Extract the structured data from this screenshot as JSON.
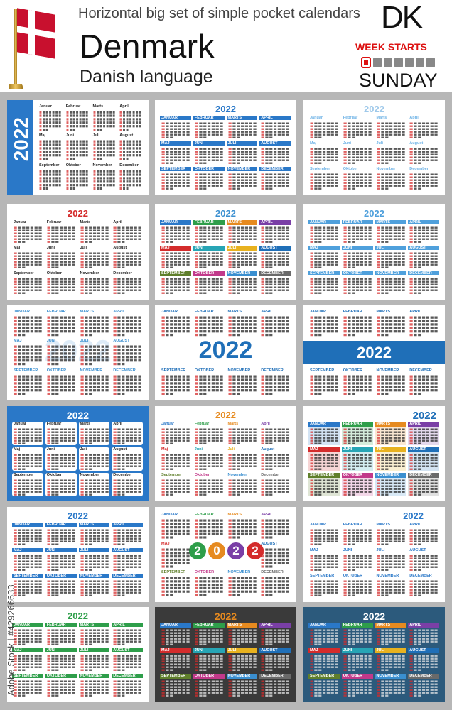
{
  "header": {
    "headline": "Horizontal big set of simple pocket calendars",
    "country": "Denmark",
    "language": "Danish language",
    "country_code": "DK",
    "week_starts_label": "WEEK STARTS",
    "week_starts_day": "SUNDAY",
    "flag_colors": {
      "red": "#c8102e",
      "cross": "#ffffff"
    }
  },
  "year": "2022",
  "months_caps": [
    "JANUAR",
    "FEBRUAR",
    "MARTS",
    "APRIL",
    "MAJ",
    "JUNI",
    "JULI",
    "AUGUST",
    "SEPTEMBER",
    "OKTOBER",
    "NOVEMBER",
    "DECEMBER"
  ],
  "months_title": [
    "Januar",
    "Februar",
    "Marts",
    "April",
    "Maj",
    "Juni",
    "Juli",
    "August",
    "September",
    "Oktober",
    "November",
    "December"
  ],
  "watermark": "Adobe Stock | #429266633",
  "card_styles": [
    {
      "id": "c1",
      "accent": "#2a78c8",
      "title_color": "#ffffff",
      "month_case": "title",
      "year_vertical": true
    },
    {
      "id": "c2",
      "accent": "#2a78c8",
      "title_color": "#2a78c8",
      "month_case": "caps"
    },
    {
      "id": "c3",
      "accent": "#6fb3e6",
      "title_color": "#9fc9ea",
      "month_case": "title"
    },
    {
      "id": "c4",
      "accent": "#d42c2c",
      "title_color": "#d42c2c",
      "month_case": "title"
    },
    {
      "id": "c5",
      "accent": "#3a8fd0",
      "title_color": "#3a8fd0",
      "month_case": "caps",
      "colorful": true
    },
    {
      "id": "c6",
      "accent": "#4fa0dc",
      "title_color": "#4fa0dc",
      "month_case": "caps"
    },
    {
      "id": "c7",
      "accent": "#3a8fd0",
      "title_color": "#cfe3f4",
      "month_case": "caps"
    },
    {
      "id": "c8",
      "accent": "#1f6fb8",
      "title_color": "#1f6fb8",
      "month_case": "caps"
    },
    {
      "id": "c9",
      "accent": "#1f6fb8",
      "title_color": "#1f6fb8",
      "month_case": "caps"
    },
    {
      "id": "c10",
      "accent": "#2a78c8",
      "title_color": "#ffffff",
      "month_case": "title"
    },
    {
      "id": "c11",
      "accent": "#e68a1f",
      "title_color": "#e68a1f",
      "month_case": "title",
      "colorful": true
    },
    {
      "id": "c12",
      "accent": "#3a8fd0",
      "title_color": "#1f6fb8",
      "month_case": "caps",
      "colorful": true
    },
    {
      "id": "c13",
      "accent": "#2a78c8",
      "title_color": "#2a78c8",
      "month_case": "caps"
    },
    {
      "id": "c14",
      "accent": "#3a8fd0",
      "title_color": "#ffffff",
      "month_case": "caps",
      "colorful": true
    },
    {
      "id": "c15",
      "accent": "#2a78c8",
      "title_color": "#2a78c8",
      "month_case": "caps"
    },
    {
      "id": "c16",
      "accent": "#2e9e4a",
      "title_color": "#2e9e4a",
      "month_case": "caps"
    },
    {
      "id": "c17",
      "accent": "#555555",
      "title_color": "#e68a1f",
      "month_case": "caps",
      "colorful": true,
      "dark": true
    },
    {
      "id": "c18",
      "accent": "#3a8fd0",
      "title_color": "#ffffff",
      "month_case": "caps",
      "colorful": true,
      "dark": true
    }
  ],
  "palette": [
    "#2a78c8",
    "#2e9e4a",
    "#e68a1f",
    "#7a3fa6",
    "#d42c2c",
    "#27a5b5",
    "#e8b21f",
    "#1f6fb8",
    "#5f7f2b",
    "#c2398a",
    "#3a8fd0",
    "#6a6a6a"
  ]
}
